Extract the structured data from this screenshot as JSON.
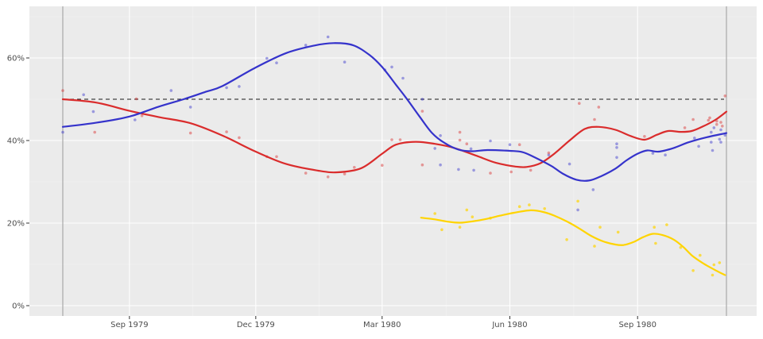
{
  "figure": {
    "background": "#ffffff",
    "panel_background": "#ebebeb",
    "grid_major_color": "#ffffff",
    "grid_minor_color": "rgba(255,255,255,0.45)",
    "axis_text_color": "#4d4d4d",
    "tick_mark_color": "#333333",
    "boundary_line_color": "#a8a8a8",
    "dashed_line_color": "#1a1a1a"
  },
  "chart_data": {
    "type": "scatter",
    "subtype": "scatter points with loess smoothed trend lines (poll percentages over time)",
    "title": "",
    "xlabel": "",
    "ylabel": "",
    "legend": "none",
    "x_axis": {
      "type": "date",
      "start": "1979-07-15",
      "end": "1980-11-04",
      "ticks": [
        {
          "date": "1979-09-01",
          "label": "Sep 1979"
        },
        {
          "date": "1979-12-01",
          "label": "Dec 1979"
        },
        {
          "date": "1980-03-01",
          "label": "Mar 1980"
        },
        {
          "date": "1980-06-01",
          "label": "Jun 1980"
        },
        {
          "date": "1980-09-01",
          "label": "Sep 1980"
        }
      ]
    },
    "y_axis": {
      "unit": "%",
      "min": -2.5,
      "max": 72.5,
      "ticks": [
        {
          "value": 60,
          "label": "60%"
        },
        {
          "value": 40,
          "label": "40%"
        },
        {
          "value": 20,
          "label": "20%"
        },
        {
          "value": 0,
          "label": "0%"
        }
      ]
    },
    "reference_lines": [
      {
        "kind": "horizontal-dashed",
        "value": 50
      },
      {
        "kind": "vertical",
        "date": "1979-07-15"
      },
      {
        "kind": "vertical",
        "date": "1980-11-04"
      }
    ],
    "series": [
      {
        "name": "blue",
        "color": "#3533cb",
        "point_opacity": 0.45,
        "line": [
          [
            "1979-07-15",
            43.3
          ],
          [
            "1979-08-08",
            44.3
          ],
          [
            "1979-09-01",
            45.8
          ],
          [
            "1979-09-22",
            48.2
          ],
          [
            "1979-10-10",
            50.0
          ],
          [
            "1979-10-26",
            51.8
          ],
          [
            "1979-11-07",
            53.2
          ],
          [
            "1979-12-01",
            57.7
          ],
          [
            "1979-12-23",
            61.2
          ],
          [
            "1980-01-12",
            63.0
          ],
          [
            "1980-01-26",
            63.6
          ],
          [
            "1980-02-09",
            63.1
          ],
          [
            "1980-02-21",
            60.7
          ],
          [
            "1980-03-01",
            57.8
          ],
          [
            "1980-03-11",
            53.5
          ],
          [
            "1980-03-19",
            50.0
          ],
          [
            "1980-03-28",
            45.8
          ],
          [
            "1980-04-06",
            41.8
          ],
          [
            "1980-04-15",
            39.4
          ],
          [
            "1980-04-25",
            37.8
          ],
          [
            "1980-05-05",
            37.4
          ],
          [
            "1980-05-16",
            37.7
          ],
          [
            "1980-06-01",
            37.5
          ],
          [
            "1980-06-10",
            37.2
          ],
          [
            "1980-06-19",
            35.9
          ],
          [
            "1980-07-01",
            33.8
          ],
          [
            "1980-07-09",
            32.0
          ],
          [
            "1980-07-19",
            30.5
          ],
          [
            "1980-07-28",
            30.3
          ],
          [
            "1980-08-06",
            31.4
          ],
          [
            "1980-08-16",
            33.2
          ],
          [
            "1980-08-24",
            35.2
          ],
          [
            "1980-09-01",
            36.8
          ],
          [
            "1980-09-08",
            37.6
          ],
          [
            "1980-09-16",
            37.3
          ],
          [
            "1980-09-27",
            38.2
          ],
          [
            "1980-10-08",
            39.6
          ],
          [
            "1980-10-21",
            40.8
          ],
          [
            "1980-11-04",
            41.8
          ]
        ],
        "points": [
          [
            "1979-07-15",
            42.0
          ],
          [
            "1979-07-30",
            51.1
          ],
          [
            "1979-08-06",
            47.0
          ],
          [
            "1979-09-05",
            45.0
          ],
          [
            "1979-10-01",
            52.1
          ],
          [
            "1979-10-15",
            48.1
          ],
          [
            "1979-11-10",
            52.8
          ],
          [
            "1979-11-19",
            53.1
          ],
          [
            "1979-12-09",
            59.9
          ],
          [
            "1979-12-16",
            58.8
          ],
          [
            "1980-01-06",
            63.1
          ],
          [
            "1980-01-22",
            65.1
          ],
          [
            "1980-02-03",
            59.0
          ],
          [
            "1980-03-03",
            57.1
          ],
          [
            "1980-03-08",
            57.8
          ],
          [
            "1980-03-16",
            55.1
          ],
          [
            "1980-03-30",
            50.0
          ],
          [
            "1980-04-08",
            38.1
          ],
          [
            "1980-04-12",
            41.2
          ],
          [
            "1980-04-12",
            34.1
          ],
          [
            "1980-04-25",
            33.0
          ],
          [
            "1980-05-04",
            38.0
          ],
          [
            "1980-05-06",
            32.8
          ],
          [
            "1980-05-18",
            39.9
          ],
          [
            "1980-06-01",
            39.0
          ],
          [
            "1980-06-29",
            36.5
          ],
          [
            "1980-07-14",
            34.3
          ],
          [
            "1980-07-20",
            23.2
          ],
          [
            "1980-07-31",
            28.1
          ],
          [
            "1980-08-17",
            39.2
          ],
          [
            "1980-08-17",
            38.3
          ],
          [
            "1980-08-17",
            35.9
          ],
          [
            "1980-09-12",
            36.9
          ],
          [
            "1980-09-21",
            36.5
          ],
          [
            "1980-10-12",
            40.6
          ],
          [
            "1980-10-15",
            38.6
          ],
          [
            "1980-10-24",
            39.6
          ],
          [
            "1980-10-24",
            42.0
          ],
          [
            "1980-10-25",
            37.6
          ],
          [
            "1980-10-26",
            43.1
          ],
          [
            "1980-10-30",
            40.3
          ],
          [
            "1980-10-31",
            42.6
          ],
          [
            "1980-10-31",
            39.6
          ],
          [
            "1980-11-03",
            41.3
          ]
        ]
      },
      {
        "name": "red",
        "color": "#da2c2c",
        "point_opacity": 0.45,
        "line": [
          [
            "1979-07-15",
            50.0
          ],
          [
            "1979-08-08",
            49.2
          ],
          [
            "1979-09-01",
            47.2
          ],
          [
            "1979-09-22",
            45.7
          ],
          [
            "1979-10-15",
            44.2
          ],
          [
            "1979-11-07",
            41.2
          ],
          [
            "1979-12-01",
            37.3
          ],
          [
            "1979-12-23",
            34.3
          ],
          [
            "1980-01-15",
            32.7
          ],
          [
            "1980-01-29",
            32.3
          ],
          [
            "1980-02-15",
            33.3
          ],
          [
            "1980-03-01",
            36.8
          ],
          [
            "1980-03-11",
            39.0
          ],
          [
            "1980-03-25",
            39.7
          ],
          [
            "1980-04-08",
            39.2
          ],
          [
            "1980-04-22",
            38.2
          ],
          [
            "1980-05-08",
            36.3
          ],
          [
            "1980-05-22",
            34.6
          ],
          [
            "1980-06-05",
            33.7
          ],
          [
            "1980-06-13",
            33.6
          ],
          [
            "1980-06-23",
            34.5
          ],
          [
            "1980-07-03",
            36.8
          ],
          [
            "1980-07-14",
            40.0
          ],
          [
            "1980-07-25",
            42.8
          ],
          [
            "1980-08-04",
            43.3
          ],
          [
            "1980-08-16",
            42.6
          ],
          [
            "1980-08-27",
            41.1
          ],
          [
            "1980-09-06",
            40.2
          ],
          [
            "1980-09-15",
            41.4
          ],
          [
            "1980-09-23",
            42.3
          ],
          [
            "1980-10-02",
            42.1
          ],
          [
            "1980-10-10",
            42.3
          ],
          [
            "1980-10-18",
            43.4
          ],
          [
            "1980-10-27",
            45.0
          ],
          [
            "1980-11-04",
            47.0
          ]
        ],
        "points": [
          [
            "1979-07-15",
            52.1
          ],
          [
            "1979-08-07",
            42.0
          ],
          [
            "1979-09-06",
            50.1
          ],
          [
            "1979-09-10",
            46.0
          ],
          [
            "1979-10-15",
            41.8
          ],
          [
            "1979-11-10",
            42.1
          ],
          [
            "1979-11-19",
            40.7
          ],
          [
            "1979-12-09",
            36.1
          ],
          [
            "1979-12-16",
            36.1
          ],
          [
            "1980-01-06",
            32.1
          ],
          [
            "1980-01-22",
            31.2
          ],
          [
            "1980-02-03",
            31.9
          ],
          [
            "1980-02-10",
            33.5
          ],
          [
            "1980-03-01",
            34.0
          ],
          [
            "1980-03-08",
            40.2
          ],
          [
            "1980-03-14",
            40.2
          ],
          [
            "1980-03-30",
            47.1
          ],
          [
            "1980-03-30",
            34.1
          ],
          [
            "1980-04-26",
            42.0
          ],
          [
            "1980-04-26",
            40.1
          ],
          [
            "1980-05-01",
            39.2
          ],
          [
            "1980-05-18",
            32.1
          ],
          [
            "1980-06-02",
            32.4
          ],
          [
            "1980-06-08",
            39.0
          ],
          [
            "1980-06-16",
            32.8
          ],
          [
            "1980-06-29",
            37.0
          ],
          [
            "1980-07-21",
            49.0
          ],
          [
            "1980-08-01",
            45.1
          ],
          [
            "1980-08-04",
            48.1
          ],
          [
            "1980-09-06",
            41.0
          ],
          [
            "1980-10-05",
            43.1
          ],
          [
            "1980-10-11",
            45.1
          ],
          [
            "1980-10-22",
            44.9
          ],
          [
            "1980-10-23",
            45.5
          ],
          [
            "1980-10-28",
            44.7
          ],
          [
            "1980-10-28",
            43.9
          ],
          [
            "1980-10-31",
            44.4
          ],
          [
            "1980-11-01",
            43.5
          ],
          [
            "1980-11-03",
            50.8
          ]
        ]
      },
      {
        "name": "yellow",
        "color": "#ffd401",
        "point_opacity": 0.7,
        "line": [
          [
            "1980-03-29",
            21.3
          ],
          [
            "1980-04-08",
            20.9
          ],
          [
            "1980-04-18",
            20.3
          ],
          [
            "1980-04-26",
            20.1
          ],
          [
            "1980-05-05",
            20.4
          ],
          [
            "1980-05-15",
            21.0
          ],
          [
            "1980-05-25",
            21.8
          ],
          [
            "1980-06-04",
            22.5
          ],
          [
            "1980-06-16",
            23.1
          ],
          [
            "1980-06-25",
            22.7
          ],
          [
            "1980-07-03",
            21.8
          ],
          [
            "1980-07-12",
            20.4
          ],
          [
            "1980-07-21",
            18.7
          ],
          [
            "1980-07-29",
            17.0
          ],
          [
            "1980-08-07",
            15.6
          ],
          [
            "1980-08-16",
            14.8
          ],
          [
            "1980-08-22",
            14.7
          ],
          [
            "1980-08-29",
            15.4
          ],
          [
            "1980-09-05",
            16.6
          ],
          [
            "1980-09-12",
            17.4
          ],
          [
            "1980-09-19",
            17.1
          ],
          [
            "1980-09-27",
            16.0
          ],
          [
            "1980-10-04",
            14.2
          ],
          [
            "1980-10-10",
            12.2
          ],
          [
            "1980-10-18",
            10.3
          ],
          [
            "1980-10-27",
            8.6
          ],
          [
            "1980-11-03",
            7.4
          ]
        ],
        "points": [
          [
            "1980-04-08",
            22.3
          ],
          [
            "1980-04-13",
            18.4
          ],
          [
            "1980-04-26",
            19.0
          ],
          [
            "1980-05-01",
            23.2
          ],
          [
            "1980-05-05",
            21.5
          ],
          [
            "1980-05-18",
            21.2
          ],
          [
            "1980-06-08",
            24.0
          ],
          [
            "1980-06-15",
            24.4
          ],
          [
            "1980-06-26",
            23.5
          ],
          [
            "1980-07-12",
            16.0
          ],
          [
            "1980-07-20",
            25.3
          ],
          [
            "1980-08-01",
            14.4
          ],
          [
            "1980-08-05",
            19.0
          ],
          [
            "1980-08-18",
            17.8
          ],
          [
            "1980-09-13",
            19.0
          ],
          [
            "1980-09-14",
            15.1
          ],
          [
            "1980-09-22",
            19.6
          ],
          [
            "1980-10-02",
            14.1
          ],
          [
            "1980-10-11",
            8.5
          ],
          [
            "1980-10-16",
            12.2
          ],
          [
            "1980-10-25",
            7.4
          ],
          [
            "1980-10-26",
            9.9
          ],
          [
            "1980-10-30",
            10.4
          ]
        ]
      }
    ]
  }
}
